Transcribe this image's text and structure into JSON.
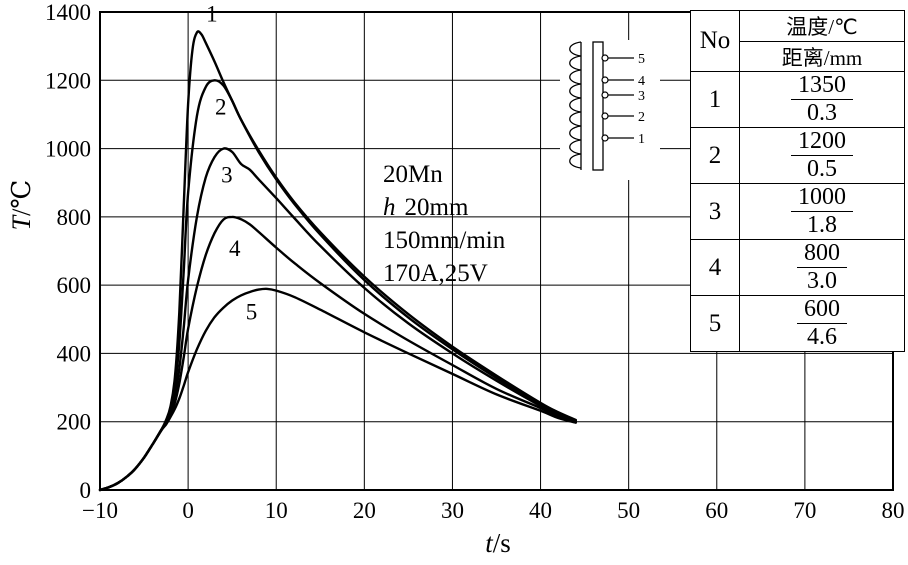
{
  "axis": {
    "y_italic": "T",
    "y_rest": "/℃",
    "x_italic": "t",
    "x_rest": "/s"
  },
  "annotation": {
    "material": "20Mn",
    "h_label": "h",
    "h_value": "20mm",
    "speed": "150mm/min",
    "current": "170A,25V"
  },
  "inset": {
    "point_labels": [
      "5",
      "4",
      "3",
      "2",
      "1"
    ]
  },
  "table": {
    "header_no": "No",
    "header_top": "温度/℃",
    "header_bottom": "距离/mm",
    "rows": [
      {
        "no": "1",
        "temp": "1350",
        "dist": "0.3"
      },
      {
        "no": "2",
        "temp": "1200",
        "dist": "0.5"
      },
      {
        "no": "3",
        "temp": "1000",
        "dist": "1.8"
      },
      {
        "no": "4",
        "temp": "800",
        "dist": "3.0"
      },
      {
        "no": "5",
        "temp": "600",
        "dist": "4.6"
      }
    ]
  },
  "chart_data": {
    "type": "line",
    "xlabel": "t/s",
    "ylabel": "T/℃",
    "xlim": [
      -10,
      80
    ],
    "ylim": [
      0,
      1400
    ],
    "xticks": [
      -10,
      0,
      10,
      20,
      30,
      40,
      50,
      60,
      70,
      80
    ],
    "yticks": [
      0,
      200,
      400,
      600,
      800,
      1000,
      1200,
      1400
    ],
    "grid": true,
    "series": [
      {
        "name": "1",
        "peak_temp_c": 1350,
        "distance_mm": 0.3,
        "points": [
          [
            -10,
            0
          ],
          [
            -9,
            8
          ],
          [
            -8,
            20
          ],
          [
            -7,
            38
          ],
          [
            -6,
            62
          ],
          [
            -5,
            95
          ],
          [
            -4,
            135
          ],
          [
            -3,
            178
          ],
          [
            -2.5,
            205
          ],
          [
            -2,
            245
          ],
          [
            -1.5,
            330
          ],
          [
            -1,
            520
          ],
          [
            -0.5,
            830
          ],
          [
            0,
            1130
          ],
          [
            0.5,
            1290
          ],
          [
            1,
            1340
          ],
          [
            1.5,
            1335
          ],
          [
            2,
            1310
          ],
          [
            3,
            1255
          ],
          [
            4,
            1195
          ],
          [
            5,
            1140
          ],
          [
            6,
            1085
          ],
          [
            8,
            995
          ],
          [
            10,
            915
          ],
          [
            12,
            845
          ],
          [
            15,
            755
          ],
          [
            20,
            625
          ],
          [
            25,
            515
          ],
          [
            30,
            420
          ],
          [
            35,
            335
          ],
          [
            40,
            255
          ],
          [
            42,
            228
          ],
          [
            44,
            205
          ]
        ]
      },
      {
        "name": "2",
        "peak_temp_c": 1200,
        "distance_mm": 0.5,
        "points": [
          [
            -10,
            0
          ],
          [
            -9,
            8
          ],
          [
            -8,
            20
          ],
          [
            -7,
            38
          ],
          [
            -6,
            62
          ],
          [
            -5,
            95
          ],
          [
            -4,
            135
          ],
          [
            -3,
            178
          ],
          [
            -2.5,
            200
          ],
          [
            -2,
            235
          ],
          [
            -1.5,
            300
          ],
          [
            -1,
            430
          ],
          [
            -0.5,
            640
          ],
          [
            0,
            870
          ],
          [
            1,
            1095
          ],
          [
            2,
            1180
          ],
          [
            3,
            1200
          ],
          [
            4,
            1185
          ],
          [
            5,
            1140
          ],
          [
            6,
            1085
          ],
          [
            8,
            990
          ],
          [
            10,
            910
          ],
          [
            12,
            840
          ],
          [
            15,
            748
          ],
          [
            20,
            615
          ],
          [
            25,
            505
          ],
          [
            30,
            412
          ],
          [
            35,
            328
          ],
          [
            40,
            250
          ],
          [
            42,
            224
          ],
          [
            44,
            203
          ]
        ]
      },
      {
        "name": "3",
        "peak_temp_c": 1000,
        "distance_mm": 1.8,
        "points": [
          [
            -10,
            0
          ],
          [
            -9,
            8
          ],
          [
            -8,
            20
          ],
          [
            -7,
            38
          ],
          [
            -6,
            62
          ],
          [
            -5,
            95
          ],
          [
            -4,
            135
          ],
          [
            -3,
            178
          ],
          [
            -2.5,
            198
          ],
          [
            -2,
            228
          ],
          [
            -1.5,
            272
          ],
          [
            -1,
            355
          ],
          [
            -0.5,
            475
          ],
          [
            0,
            615
          ],
          [
            1,
            800
          ],
          [
            2,
            915
          ],
          [
            3,
            975
          ],
          [
            4,
            1000
          ],
          [
            5,
            990
          ],
          [
            6,
            955
          ],
          [
            7,
            938
          ],
          [
            8,
            910
          ],
          [
            10,
            855
          ],
          [
            12,
            798
          ],
          [
            15,
            715
          ],
          [
            20,
            592
          ],
          [
            25,
            488
          ],
          [
            30,
            400
          ],
          [
            35,
            320
          ],
          [
            40,
            246
          ],
          [
            42,
            220
          ],
          [
            44,
            201
          ]
        ]
      },
      {
        "name": "4",
        "peak_temp_c": 800,
        "distance_mm": 3.0,
        "points": [
          [
            -10,
            0
          ],
          [
            -9,
            8
          ],
          [
            -8,
            20
          ],
          [
            -7,
            38
          ],
          [
            -6,
            62
          ],
          [
            -5,
            95
          ],
          [
            -4,
            135
          ],
          [
            -3,
            178
          ],
          [
            -2.5,
            196
          ],
          [
            -2,
            222
          ],
          [
            -1.5,
            256
          ],
          [
            -1,
            312
          ],
          [
            -0.5,
            388
          ],
          [
            0,
            472
          ],
          [
            1,
            595
          ],
          [
            2,
            688
          ],
          [
            3,
            752
          ],
          [
            4,
            792
          ],
          [
            5,
            800
          ],
          [
            6,
            793
          ],
          [
            7,
            778
          ],
          [
            8,
            756
          ],
          [
            10,
            710
          ],
          [
            12,
            666
          ],
          [
            15,
            606
          ],
          [
            20,
            516
          ],
          [
            25,
            438
          ],
          [
            30,
            366
          ],
          [
            35,
            296
          ],
          [
            40,
            240
          ],
          [
            42,
            216
          ],
          [
            44,
            199
          ]
        ]
      },
      {
        "name": "5",
        "peak_temp_c": 600,
        "distance_mm": 4.6,
        "points": [
          [
            -10,
            0
          ],
          [
            -9,
            8
          ],
          [
            -8,
            20
          ],
          [
            -7,
            38
          ],
          [
            -6,
            62
          ],
          [
            -5,
            95
          ],
          [
            -4,
            135
          ],
          [
            -3,
            176
          ],
          [
            -2.5,
            192
          ],
          [
            -2,
            214
          ],
          [
            -1.5,
            238
          ],
          [
            -1,
            268
          ],
          [
            -0.5,
            305
          ],
          [
            0,
            345
          ],
          [
            1,
            412
          ],
          [
            2,
            466
          ],
          [
            3,
            506
          ],
          [
            4,
            534
          ],
          [
            5,
            555
          ],
          [
            6,
            570
          ],
          [
            7,
            580
          ],
          [
            8,
            587
          ],
          [
            9,
            589
          ],
          [
            10,
            584
          ],
          [
            12,
            566
          ],
          [
            15,
            528
          ],
          [
            20,
            462
          ],
          [
            25,
            400
          ],
          [
            30,
            340
          ],
          [
            35,
            280
          ],
          [
            40,
            232
          ],
          [
            42,
            211
          ],
          [
            44,
            197
          ]
        ]
      }
    ],
    "curve_labels": [
      {
        "text": "1",
        "t": 2.7,
        "T": 1372
      },
      {
        "text": "2",
        "t": 3.7,
        "T": 1100
      },
      {
        "text": "3",
        "t": 4.4,
        "T": 900
      },
      {
        "text": "4",
        "t": 5.3,
        "T": 685
      },
      {
        "text": "5",
        "t": 7.2,
        "T": 500
      }
    ]
  }
}
